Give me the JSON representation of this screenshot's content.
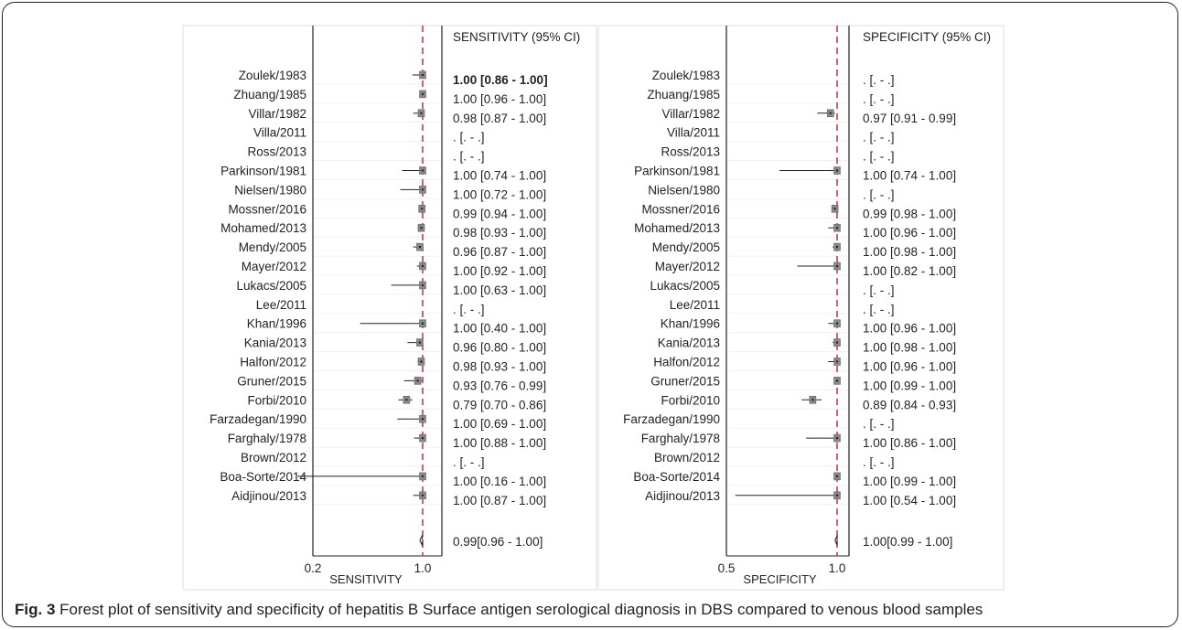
{
  "caption": {
    "label": "Fig. 3",
    "text": " Forest plot of sensitivity and specificity of hepatitis B Surface antigen serological diagnosis in DBS compared to venous blood samples"
  },
  "colors": {
    "refline": "#c0202a",
    "point": "#888888",
    "line": "#222222"
  },
  "chart_data": [
    {
      "type": "forest",
      "xlabel": "SENSITIVITY",
      "ci_header": "SENSITIVITY (95% CI)",
      "xlim": [
        0.2,
        1.0
      ],
      "ticks": [
        "0.2",
        "1.0"
      ],
      "reference_line": 1.0,
      "studies": [
        {
          "name": "Zoulek/1983",
          "est": 1.0,
          "lo": 0.86,
          "hi": 1.0,
          "label": "1.00 [0.86 - 1.00]",
          "bold": true
        },
        {
          "name": "Zhuang/1985",
          "est": 1.0,
          "lo": 0.96,
          "hi": 1.0,
          "label": "1.00 [0.96 - 1.00]"
        },
        {
          "name": "Villar/1982",
          "est": 0.98,
          "lo": 0.87,
          "hi": 1.0,
          "label": "0.98 [0.87 - 1.00]"
        },
        {
          "name": "Villa/2011",
          "est": null,
          "lo": null,
          "hi": null,
          "label": ". [. - .]"
        },
        {
          "name": "Ross/2013",
          "est": null,
          "lo": null,
          "hi": null,
          "label": ". [. - .]"
        },
        {
          "name": "Parkinson/1981",
          "est": 1.0,
          "lo": 0.74,
          "hi": 1.0,
          "label": "1.00 [0.74 - 1.00]"
        },
        {
          "name": "Nielsen/1980",
          "est": 1.0,
          "lo": 0.72,
          "hi": 1.0,
          "label": "1.00 [0.72 - 1.00]"
        },
        {
          "name": "Mossner/2016",
          "est": 0.99,
          "lo": 0.94,
          "hi": 1.0,
          "label": "0.99 [0.94 - 1.00]"
        },
        {
          "name": "Mohamed/2013",
          "est": 0.98,
          "lo": 0.93,
          "hi": 1.0,
          "label": "0.98 [0.93 - 1.00]"
        },
        {
          "name": "Mendy/2005",
          "est": 0.96,
          "lo": 0.87,
          "hi": 1.0,
          "label": "0.96 [0.87 - 1.00]"
        },
        {
          "name": "Mayer/2012",
          "est": 1.0,
          "lo": 0.92,
          "hi": 1.0,
          "label": "1.00 [0.92 - 1.00]"
        },
        {
          "name": "Lukacs/2005",
          "est": 1.0,
          "lo": 0.63,
          "hi": 1.0,
          "label": "1.00 [0.63 - 1.00]"
        },
        {
          "name": "Lee/2011",
          "est": null,
          "lo": null,
          "hi": null,
          "label": ". [. - .]"
        },
        {
          "name": "Khan/1996",
          "est": 1.0,
          "lo": 0.4,
          "hi": 1.0,
          "label": "1.00 [0.40 - 1.00]"
        },
        {
          "name": "Kania/2013",
          "est": 0.96,
          "lo": 0.8,
          "hi": 1.0,
          "label": "0.96 [0.80 - 1.00]"
        },
        {
          "name": "Halfon/2012",
          "est": 0.98,
          "lo": 0.93,
          "hi": 1.0,
          "label": "0.98 [0.93 - 1.00]"
        },
        {
          "name": "Gruner/2015",
          "est": 0.93,
          "lo": 0.76,
          "hi": 0.99,
          "label": "0.93 [0.76 - 0.99]"
        },
        {
          "name": "Forbi/2010",
          "est": 0.79,
          "lo": 0.7,
          "hi": 0.86,
          "label": "0.79 [0.70 - 0.86]"
        },
        {
          "name": "Farzadegan/1990",
          "est": 1.0,
          "lo": 0.69,
          "hi": 1.0,
          "label": "1.00 [0.69 - 1.00]"
        },
        {
          "name": "Farghaly/1978",
          "est": 1.0,
          "lo": 0.88,
          "hi": 1.0,
          "label": "1.00 [0.88 - 1.00]"
        },
        {
          "name": "Brown/2012",
          "est": null,
          "lo": null,
          "hi": null,
          "label": ". [. - .]"
        },
        {
          "name": "Boa-Sorte/2014",
          "est": 1.0,
          "lo": 0.16,
          "hi": 1.0,
          "label": "1.00 [0.16 - 1.00]"
        },
        {
          "name": "Aidjinou/2013",
          "est": 1.0,
          "lo": 0.87,
          "hi": 1.0,
          "label": "1.00 [0.87 - 1.00]"
        }
      ],
      "pooled": {
        "est": 0.99,
        "lo": 0.96,
        "hi": 1.0,
        "label": "0.99[0.96 - 1.00]"
      }
    },
    {
      "type": "forest",
      "xlabel": "SPECIFICITY",
      "ci_header": "SPECIFICITY (95% CI)",
      "xlim": [
        0.5,
        1.0
      ],
      "ticks": [
        "0.5",
        "1.0"
      ],
      "reference_line": 1.0,
      "studies": [
        {
          "name": "Zoulek/1983",
          "est": null,
          "lo": null,
          "hi": null,
          "label": ". [. - .]"
        },
        {
          "name": "Zhuang/1985",
          "est": null,
          "lo": null,
          "hi": null,
          "label": ". [. - .]"
        },
        {
          "name": "Villar/1982",
          "est": 0.97,
          "lo": 0.91,
          "hi": 0.99,
          "label": "0.97 [0.91 - 0.99]"
        },
        {
          "name": "Villa/2011",
          "est": null,
          "lo": null,
          "hi": null,
          "label": ". [. - .]"
        },
        {
          "name": "Ross/2013",
          "est": null,
          "lo": null,
          "hi": null,
          "label": ". [. - .]"
        },
        {
          "name": "Parkinson/1981",
          "est": 1.0,
          "lo": 0.74,
          "hi": 1.0,
          "label": "1.00 [0.74 - 1.00]"
        },
        {
          "name": "Nielsen/1980",
          "est": null,
          "lo": null,
          "hi": null,
          "label": ". [. - .]"
        },
        {
          "name": "Mossner/2016",
          "est": 0.99,
          "lo": 0.98,
          "hi": 1.0,
          "label": "0.99 [0.98 - 1.00]"
        },
        {
          "name": "Mohamed/2013",
          "est": 1.0,
          "lo": 0.96,
          "hi": 1.0,
          "label": "1.00 [0.96 - 1.00]"
        },
        {
          "name": "Mendy/2005",
          "est": 1.0,
          "lo": 0.98,
          "hi": 1.0,
          "label": "1.00 [0.98 - 1.00]"
        },
        {
          "name": "Mayer/2012",
          "est": 1.0,
          "lo": 0.82,
          "hi": 1.0,
          "label": "1.00 [0.82 - 1.00]"
        },
        {
          "name": "Lukacs/2005",
          "est": null,
          "lo": null,
          "hi": null,
          "label": ". [. - .]"
        },
        {
          "name": "Lee/2011",
          "est": null,
          "lo": null,
          "hi": null,
          "label": ". [. - .]"
        },
        {
          "name": "Khan/1996",
          "est": 1.0,
          "lo": 0.96,
          "hi": 1.0,
          "label": "1.00 [0.96 - 1.00]"
        },
        {
          "name": "Kania/2013",
          "est": 1.0,
          "lo": 0.98,
          "hi": 1.0,
          "label": "1.00 [0.98 - 1.00]"
        },
        {
          "name": "Halfon/2012",
          "est": 1.0,
          "lo": 0.96,
          "hi": 1.0,
          "label": "1.00 [0.96 - 1.00]"
        },
        {
          "name": "Gruner/2015",
          "est": 1.0,
          "lo": 0.99,
          "hi": 1.0,
          "label": "1.00 [0.99 - 1.00]"
        },
        {
          "name": "Forbi/2010",
          "est": 0.89,
          "lo": 0.84,
          "hi": 0.93,
          "label": "0.89 [0.84 - 0.93]"
        },
        {
          "name": "Farzadegan/1990",
          "est": null,
          "lo": null,
          "hi": null,
          "label": ". [. - .]"
        },
        {
          "name": "Farghaly/1978",
          "est": 1.0,
          "lo": 0.86,
          "hi": 1.0,
          "label": "1.00 [0.86 - 1.00]"
        },
        {
          "name": "Brown/2012",
          "est": null,
          "lo": null,
          "hi": null,
          "label": ". [. - .]"
        },
        {
          "name": "Boa-Sorte/2014",
          "est": 1.0,
          "lo": 0.99,
          "hi": 1.0,
          "label": "1.00 [0.99 - 1.00]"
        },
        {
          "name": "Aidjinou/2013",
          "est": 1.0,
          "lo": 0.54,
          "hi": 1.0,
          "label": "1.00 [0.54 - 1.00]"
        }
      ],
      "pooled": {
        "est": 1.0,
        "lo": 0.99,
        "hi": 1.0,
        "label": "1.00[0.99 - 1.00]"
      }
    }
  ]
}
